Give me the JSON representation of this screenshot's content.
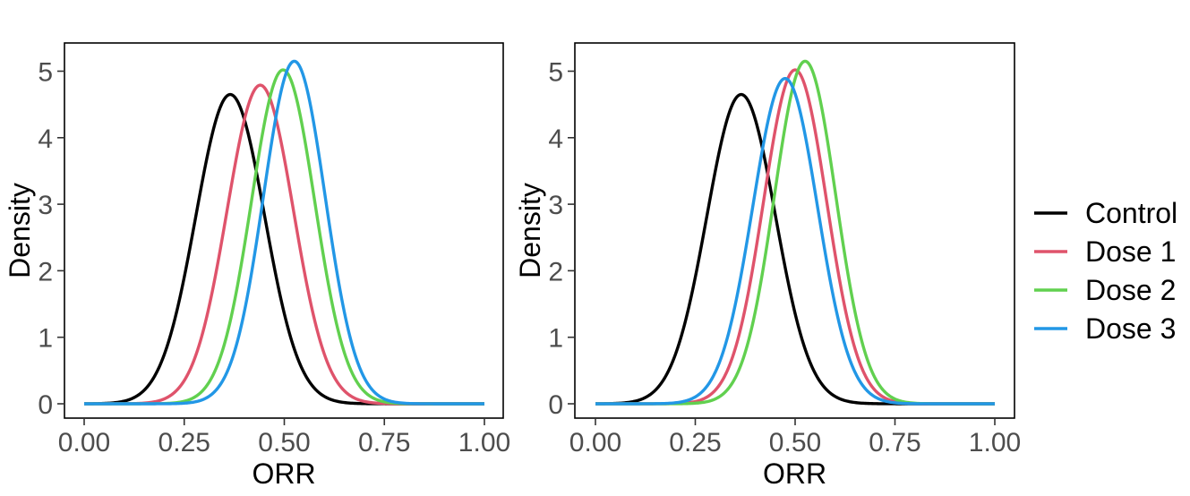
{
  "chart_data": [
    {
      "type": "line",
      "panel": "left",
      "xlabel": "ORR",
      "ylabel": "Density",
      "xlim": [
        0,
        1
      ],
      "ylim": [
        0,
        5.2
      ],
      "x_ticks": [
        "0.00",
        "0.25",
        "0.50",
        "0.75",
        "1.00"
      ],
      "y_ticks": [
        "0",
        "1",
        "2",
        "3",
        "4",
        "5"
      ],
      "grid": false,
      "series": [
        {
          "name": "Control",
          "color": "#000000",
          "mode": 0.365,
          "peak": 4.65,
          "sd": 0.086
        },
        {
          "name": "Dose 1",
          "color": "#df536b",
          "mode": 0.44,
          "peak": 4.79,
          "sd": 0.083
        },
        {
          "name": "Dose 2",
          "color": "#61d04f",
          "mode": 0.497,
          "peak": 5.02,
          "sd": 0.079
        },
        {
          "name": "Dose 3",
          "color": "#2297e6",
          "mode": 0.525,
          "peak": 5.15,
          "sd": 0.077
        }
      ]
    },
    {
      "type": "line",
      "panel": "right",
      "xlabel": "ORR",
      "ylabel": "Density",
      "xlim": [
        0,
        1
      ],
      "ylim": [
        0,
        5.2
      ],
      "x_ticks": [
        "0.00",
        "0.25",
        "0.50",
        "0.75",
        "1.00"
      ],
      "y_ticks": [
        "0",
        "1",
        "2",
        "3",
        "4",
        "5"
      ],
      "grid": false,
      "series": [
        {
          "name": "Control",
          "color": "#000000",
          "mode": 0.365,
          "peak": 4.65,
          "sd": 0.086
        },
        {
          "name": "Dose 1",
          "color": "#df536b",
          "mode": 0.5,
          "peak": 5.02,
          "sd": 0.079
        },
        {
          "name": "Dose 2",
          "color": "#61d04f",
          "mode": 0.525,
          "peak": 5.15,
          "sd": 0.077
        },
        {
          "name": "Dose 3",
          "color": "#2297e6",
          "mode": 0.475,
          "peak": 4.89,
          "sd": 0.081
        }
      ]
    }
  ],
  "legend": {
    "position": "right",
    "entries": [
      {
        "label": "Control",
        "color": "#000000"
      },
      {
        "label": "Dose 1",
        "color": "#df536b"
      },
      {
        "label": "Dose 2",
        "color": "#61d04f"
      },
      {
        "label": "Dose 3",
        "color": "#2297e6"
      }
    ]
  }
}
